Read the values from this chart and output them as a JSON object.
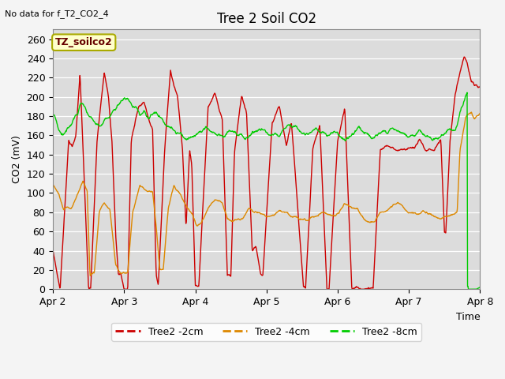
{
  "title": "Tree 2 Soil CO2",
  "subtitle": "No data for f_T2_CO2_4",
  "ylabel": "CO2 (mV)",
  "xlabel": "Time",
  "annotation": "TZ_soilco2",
  "ylim": [
    0,
    270
  ],
  "yticks": [
    0,
    20,
    40,
    60,
    80,
    100,
    120,
    140,
    160,
    180,
    200,
    220,
    240,
    260
  ],
  "xtick_labels": [
    "Apr 2",
    "Apr 3",
    "Apr 4",
    "Apr 5",
    "Apr 6",
    "Apr 7",
    "Apr 8"
  ],
  "colors": {
    "red": "#cc0000",
    "orange": "#dd8800",
    "green": "#00cc00",
    "background": "#dcdcdc",
    "grid": "#ffffff"
  },
  "legend": [
    {
      "label": "Tree2 -2cm",
      "color": "#cc0000"
    },
    {
      "label": "Tree2 -4cm",
      "color": "#dd8800"
    },
    {
      "label": "Tree2 -8cm",
      "color": "#00cc00"
    }
  ]
}
